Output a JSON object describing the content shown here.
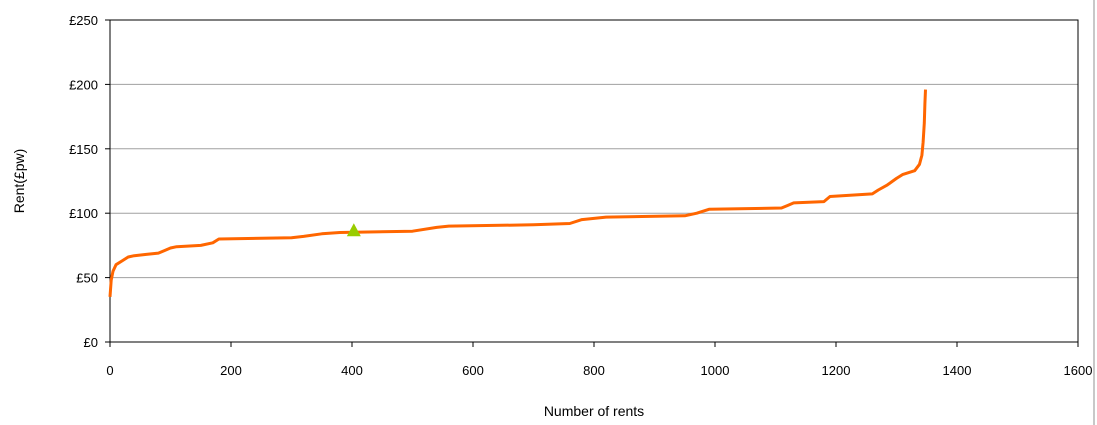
{
  "chart_data": {
    "type": "line",
    "xlabel": "Number of rents",
    "ylabel": "Rent(£pw)",
    "xlim": [
      0,
      1600
    ],
    "ylim": [
      0,
      250
    ],
    "x_ticks": [
      0,
      200,
      400,
      600,
      800,
      1000,
      1200,
      1400,
      1600
    ],
    "x_tick_labels": [
      "0",
      "200",
      "400",
      "600",
      "800",
      "1000",
      "1200",
      "1400",
      "1600"
    ],
    "y_ticks": [
      0,
      50,
      100,
      150,
      200,
      250
    ],
    "y_tick_labels": [
      "£0",
      "£50",
      "£100",
      "£150",
      "£200",
      "£250"
    ],
    "grid": "horizontal",
    "legend": "none",
    "series": [
      {
        "color": "#ff6600",
        "points": [
          [
            0,
            35
          ],
          [
            2,
            48
          ],
          [
            5,
            55
          ],
          [
            10,
            60
          ],
          [
            20,
            63
          ],
          [
            30,
            66
          ],
          [
            40,
            67
          ],
          [
            60,
            68
          ],
          [
            80,
            69
          ],
          [
            90,
            71
          ],
          [
            100,
            73
          ],
          [
            110,
            74
          ],
          [
            150,
            75
          ],
          [
            170,
            77
          ],
          [
            180,
            80
          ],
          [
            300,
            81
          ],
          [
            320,
            82
          ],
          [
            350,
            84
          ],
          [
            380,
            85
          ],
          [
            500,
            86
          ],
          [
            540,
            89
          ],
          [
            560,
            90
          ],
          [
            700,
            91
          ],
          [
            760,
            92
          ],
          [
            780,
            95
          ],
          [
            820,
            97
          ],
          [
            950,
            98
          ],
          [
            970,
            100
          ],
          [
            990,
            103
          ],
          [
            1110,
            104
          ],
          [
            1120,
            106
          ],
          [
            1130,
            108
          ],
          [
            1180,
            109
          ],
          [
            1190,
            113
          ],
          [
            1260,
            115
          ],
          [
            1270,
            118
          ],
          [
            1285,
            122
          ],
          [
            1300,
            127
          ],
          [
            1310,
            130
          ],
          [
            1330,
            133
          ],
          [
            1338,
            138
          ],
          [
            1342,
            145
          ],
          [
            1344,
            155
          ],
          [
            1346,
            170
          ],
          [
            1347,
            185
          ],
          [
            1348,
            196
          ]
        ]
      }
    ],
    "markers": [
      {
        "shape": "triangle",
        "color": "#99cc00",
        "x": 403,
        "y": 86
      }
    ]
  }
}
